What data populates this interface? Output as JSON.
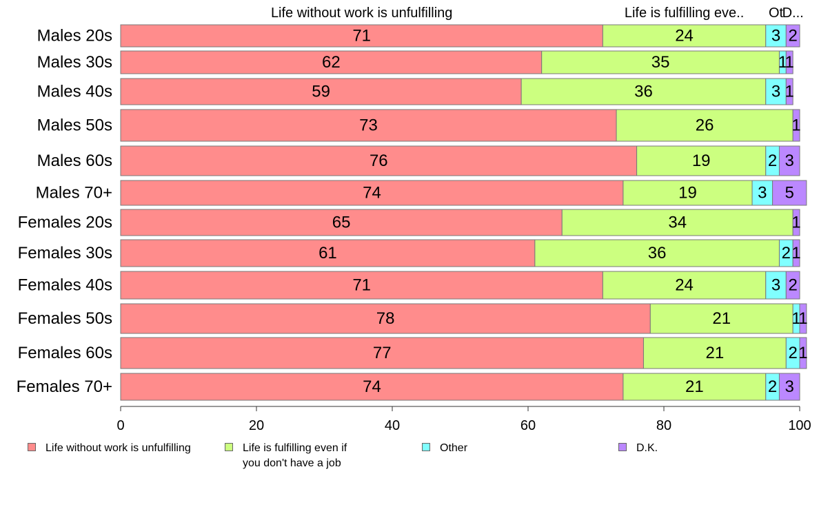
{
  "chart_data": {
    "type": "bar",
    "orientation": "horizontal",
    "stacked": true,
    "categories": [
      "Males 20s",
      "Males 30s",
      "Males 40s",
      "Males 50s",
      "Males 60s",
      "Males 70+",
      "Females 20s",
      "Females 30s",
      "Females 40s",
      "Females 50s",
      "Females 60s",
      "Females 70+"
    ],
    "series": [
      {
        "name": "Life without work is unfulfilling",
        "color": "#ff8c8c",
        "values": [
          71,
          62,
          59,
          73,
          76,
          74,
          65,
          61,
          71,
          78,
          77,
          74
        ]
      },
      {
        "name": "Life is fulfilling even if\nyou don't have a job",
        "color": "#ccff80",
        "values": [
          24,
          35,
          36,
          26,
          19,
          19,
          34,
          36,
          24,
          21,
          21,
          21
        ]
      },
      {
        "name": "Other",
        "color": "#80ffff",
        "values": [
          3,
          1,
          3,
          0,
          2,
          3,
          0,
          2,
          3,
          1,
          2,
          2
        ]
      },
      {
        "name": "D.K.",
        "color": "#bb88ff",
        "values": [
          2,
          1,
          1,
          1,
          3,
          5,
          1,
          1,
          2,
          1,
          1,
          3
        ]
      }
    ],
    "top_labels": [
      "Life without work is unfulfilling",
      "Life is fulfilling eve..",
      "Ot",
      "D..."
    ],
    "xlim": [
      0,
      100
    ],
    "xticks": [
      0,
      20,
      40,
      60,
      80,
      100
    ],
    "legend_position": "bottom"
  }
}
